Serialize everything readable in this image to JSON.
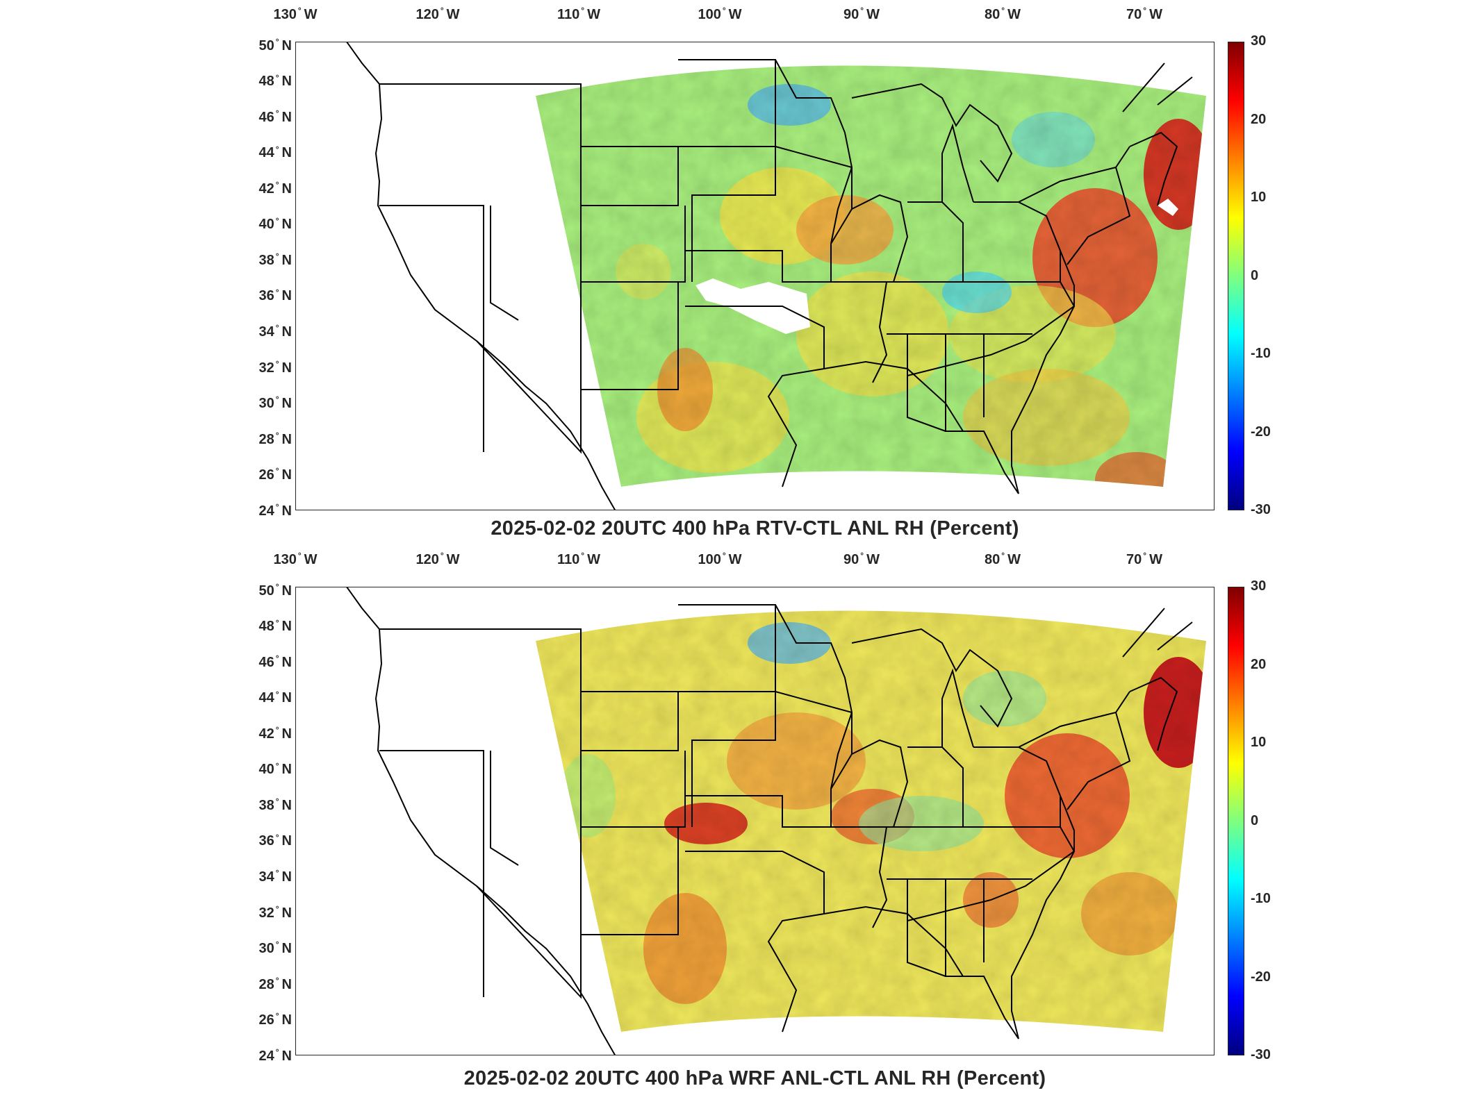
{
  "top": {
    "title": "2025-02-02 20UTC 400 hPa RTV-CTL ANL RH (Percent)"
  },
  "bottom": {
    "title": "2025-02-02 20UTC 400 hPa WRF ANL-CTL ANL RH (Percent)"
  },
  "axes": {
    "lon_labels": [
      "130",
      "120",
      "110",
      "100",
      "90",
      "80",
      "70"
    ],
    "lon_suffix": "W",
    "lat_labels": [
      "50",
      "48",
      "46",
      "44",
      "42",
      "40",
      "38",
      "36",
      "34",
      "32",
      "30",
      "28",
      "26",
      "24"
    ],
    "lat_suffix": "N"
  },
  "colorbar": {
    "ticks": [
      "30",
      "20",
      "10",
      "0",
      "-10",
      "-20",
      "-30"
    ],
    "range": [
      -30,
      30
    ],
    "colormap": "jet"
  },
  "map": {
    "type": "filled-field",
    "region": "Contiguous United States",
    "lon_range": [
      -131,
      -65
    ],
    "lat_range": [
      24,
      50
    ],
    "colors": {
      "land_outline": "#000000",
      "missing": "#ffffff"
    }
  }
}
